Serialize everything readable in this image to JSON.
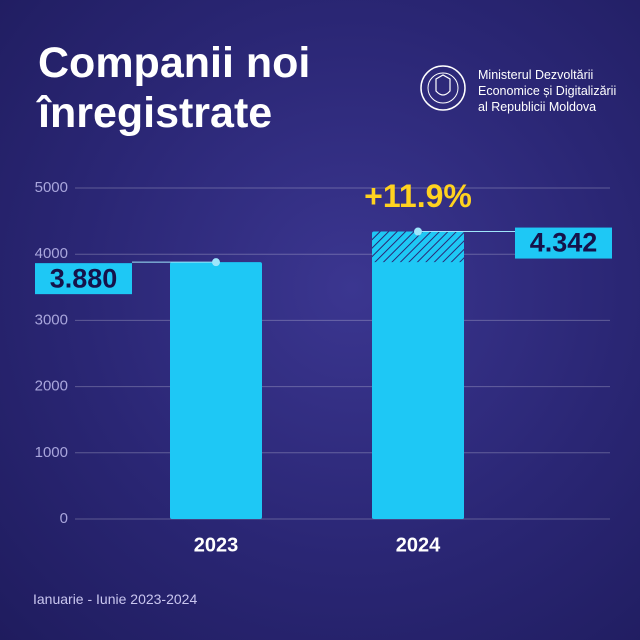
{
  "chart_data": {
    "type": "bar",
    "title": "Companii noi înregistrate",
    "subtitle": "Ministerul Dezvoltării Economice și Digitalizării al Republicii Moldova",
    "annotation": "+11.9%",
    "note": "Ianuarie - Iunie 2023-2024",
    "categories": [
      "2023",
      "2024"
    ],
    "values": [
      3880,
      4342
    ],
    "value_labels": [
      "3.880",
      "4.342"
    ],
    "color": "#1ec8f5",
    "ylim": [
      0,
      5000
    ],
    "yticks": [
      0,
      1000,
      2000,
      3000,
      4000,
      5000
    ],
    "grid": true
  }
}
